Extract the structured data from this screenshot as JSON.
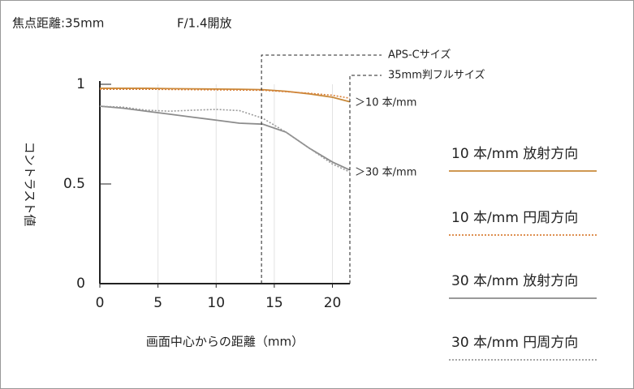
{
  "chart_data": {
    "type": "line",
    "title": "焦点距離:35mm",
    "subtitle": "F/1.4開放",
    "x_label": "画面中心からの距離（mm）",
    "y_label": "コントラスト値",
    "x": [
      0,
      2,
      4,
      6,
      8,
      10,
      12,
      14,
      16,
      18,
      20,
      21.5
    ],
    "series": [
      {
        "name": "10 本/mm 放射方向",
        "color": "#c8893a",
        "dash": "solid",
        "values": [
          0.98,
          0.98,
          0.98,
          0.978,
          0.977,
          0.976,
          0.975,
          0.973,
          0.965,
          0.952,
          0.935,
          0.912
        ]
      },
      {
        "name": "10 本/mm 円周方向",
        "color": "#d9813a",
        "dash": "dotted",
        "values": [
          0.975,
          0.975,
          0.975,
          0.974,
          0.973,
          0.972,
          0.971,
          0.97,
          0.963,
          0.955,
          0.945,
          0.93
        ]
      },
      {
        "name": "30 本/mm 放射方向",
        "color": "#8c8c8c",
        "dash": "solid",
        "values": [
          0.89,
          0.88,
          0.865,
          0.85,
          0.835,
          0.82,
          0.805,
          0.8,
          0.76,
          0.68,
          0.61,
          0.57
        ]
      },
      {
        "name": "30 本/mm 円周方向",
        "color": "#9a9a9a",
        "dash": "dotted",
        "values": [
          0.89,
          0.885,
          0.87,
          0.865,
          0.87,
          0.874,
          0.868,
          0.83,
          0.76,
          0.68,
          0.6,
          0.56
        ]
      }
    ],
    "line_labels": [
      "＞10 本/mm",
      "＞30 本/mm"
    ],
    "format_lines": [
      {
        "label": "APS-Cサイズ",
        "x": 13.9
      },
      {
        "label": "35mm判フルサイズ",
        "x": 21.5
      }
    ],
    "xlim": [
      0,
      21.5
    ],
    "xticks": [
      0,
      5,
      10,
      15,
      20
    ],
    "ylim": [
      0,
      1
    ],
    "yticks": [
      0,
      0.5,
      1
    ],
    "grid": true
  }
}
